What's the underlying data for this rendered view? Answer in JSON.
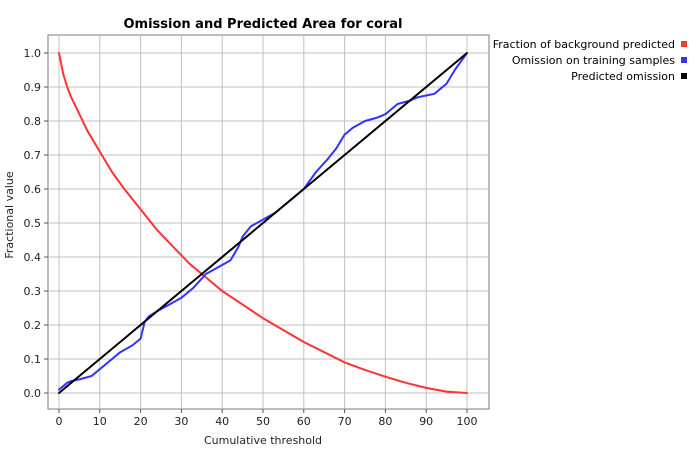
{
  "chart_data": {
    "type": "line",
    "title": "Omission and Predicted Area for coral",
    "xlabel": "Cumulative threshold",
    "ylabel": "Fractional value",
    "xlim": [
      0,
      100
    ],
    "ylim": [
      0,
      1
    ],
    "xticks": [
      0,
      10,
      20,
      30,
      40,
      50,
      60,
      70,
      80,
      90,
      100
    ],
    "xtick_labels": [
      "0",
      "10",
      "20",
      "30",
      "40",
      "50",
      "60",
      "70",
      "80",
      "90",
      "100"
    ],
    "yticks": [
      0,
      0.1,
      0.2,
      0.3,
      0.4,
      0.5,
      0.6,
      0.7,
      0.8,
      0.9,
      1.0
    ],
    "ytick_labels": [
      "0.0",
      "0.1",
      "0.2",
      "0.3",
      "0.4",
      "0.5",
      "0.6",
      "0.7",
      "0.8",
      "0.9",
      "1.0"
    ],
    "grid": true,
    "legend_position": "top-right-outside",
    "series": [
      {
        "name": "Fraction of background predicted",
        "color": "#ff3333",
        "x": [
          0,
          1,
          2,
          3,
          5,
          7,
          10,
          13,
          16,
          20,
          24,
          28,
          32,
          36,
          40,
          45,
          50,
          55,
          60,
          65,
          70,
          75,
          80,
          85,
          90,
          95,
          100
        ],
        "y": [
          1.0,
          0.94,
          0.9,
          0.87,
          0.82,
          0.77,
          0.71,
          0.65,
          0.6,
          0.54,
          0.48,
          0.43,
          0.38,
          0.34,
          0.3,
          0.26,
          0.22,
          0.185,
          0.15,
          0.12,
          0.09,
          0.068,
          0.048,
          0.03,
          0.015,
          0.004,
          0.0
        ]
      },
      {
        "name": "Omission on training samples",
        "color": "#3333ff",
        "x": [
          0,
          1,
          2,
          3,
          5,
          8,
          10,
          12,
          15,
          18,
          20,
          21,
          22,
          24,
          27,
          30,
          33,
          36,
          39,
          42,
          44,
          45,
          47,
          50,
          53,
          55,
          57,
          60,
          63,
          66,
          68,
          70,
          72,
          75,
          78,
          80,
          83,
          86,
          88,
          90,
          92,
          95,
          97,
          100
        ],
        "y": [
          0.01,
          0.02,
          0.03,
          0.035,
          0.04,
          0.05,
          0.07,
          0.09,
          0.12,
          0.14,
          0.16,
          0.21,
          0.225,
          0.24,
          0.26,
          0.28,
          0.31,
          0.35,
          0.37,
          0.39,
          0.43,
          0.46,
          0.49,
          0.51,
          0.53,
          0.55,
          0.57,
          0.6,
          0.65,
          0.69,
          0.72,
          0.76,
          0.78,
          0.8,
          0.81,
          0.82,
          0.85,
          0.86,
          0.87,
          0.875,
          0.88,
          0.91,
          0.95,
          1.0
        ]
      },
      {
        "name": "Predicted omission",
        "color": "#000000",
        "x": [
          0,
          100
        ],
        "y": [
          0,
          1
        ]
      }
    ]
  }
}
